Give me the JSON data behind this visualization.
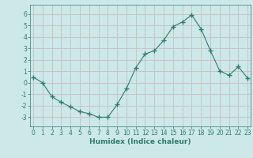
{
  "x": [
    0,
    1,
    2,
    3,
    4,
    5,
    6,
    7,
    8,
    9,
    10,
    11,
    12,
    13,
    14,
    15,
    16,
    17,
    18,
    19,
    20,
    21,
    22,
    23
  ],
  "y": [
    0.5,
    0.0,
    -1.2,
    -1.7,
    -2.1,
    -2.5,
    -2.7,
    -3.0,
    -3.0,
    -1.9,
    -0.5,
    1.3,
    2.5,
    2.8,
    3.7,
    4.9,
    5.3,
    5.9,
    4.7,
    2.8,
    1.05,
    0.65,
    1.4,
    0.4
  ],
  "line_color": "#2e7d6e",
  "marker": "+",
  "marker_size": 4,
  "marker_lw": 1.0,
  "bg_color": "#cce8e8",
  "grid_color": "#c8b8b8",
  "xlabel": "Humidex (Indice chaleur)",
  "ylim": [
    -3.8,
    6.8
  ],
  "xlim": [
    -0.3,
    23.3
  ],
  "yticks": [
    -3,
    -2,
    -1,
    0,
    1,
    2,
    3,
    4,
    5,
    6
  ],
  "xticks": [
    0,
    1,
    2,
    3,
    4,
    5,
    6,
    7,
    8,
    9,
    10,
    11,
    12,
    13,
    14,
    15,
    16,
    17,
    18,
    19,
    20,
    21,
    22,
    23
  ],
  "axis_color": "#2e7d6e",
  "tick_label_color": "#2e7d6e",
  "tick_fontsize": 5.5,
  "xlabel_fontsize": 6.5
}
